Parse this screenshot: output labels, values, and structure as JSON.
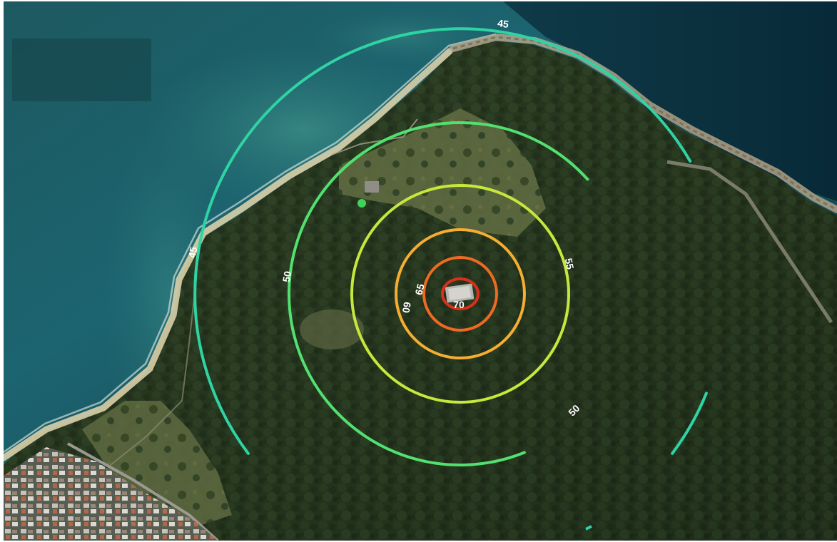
{
  "map": {
    "type": "noise-contour-map",
    "basemap": "aerial-satellite-imagery",
    "contours": [
      {
        "level": 45,
        "color": "#2fd3a4"
      },
      {
        "level": 50,
        "color": "#52e070"
      },
      {
        "level": 55,
        "color": "#c6e83c"
      },
      {
        "level": 60,
        "color": "#f5ad32"
      },
      {
        "level": 65,
        "color": "#ee6a22"
      },
      {
        "level": 70,
        "color": "#d8301c"
      }
    ],
    "labels": {
      "c45_top": "45",
      "c45_left": "45",
      "c50_left": "50",
      "c50_right": "50",
      "c55_right": "55",
      "c60_left": "60",
      "c65_left": "65",
      "c70_center": "70"
    },
    "source_marker_color": "#3fd35c"
  }
}
